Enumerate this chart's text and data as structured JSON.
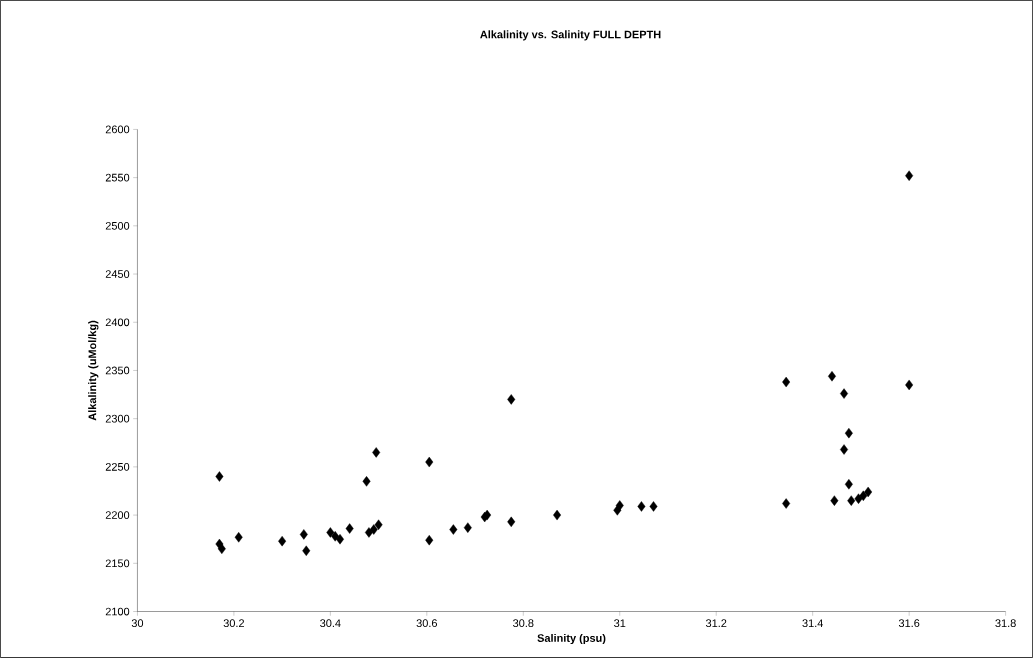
{
  "chart_data": {
    "type": "scatter",
    "title": "Alkalinity vs. Salinity FULL DEPTH",
    "xlabel": "Salinity (psu)",
    "ylabel": "Alkalinity (uMol/kg)",
    "x": [
      30.17,
      30.17,
      30.175,
      30.21,
      30.3,
      30.345,
      30.35,
      30.4,
      30.41,
      30.42,
      30.44,
      30.475,
      30.48,
      30.49,
      30.495,
      30.5,
      30.605,
      30.605,
      30.655,
      30.685,
      30.72,
      30.725,
      30.775,
      30.775,
      30.87,
      30.995,
      31.0,
      31.045,
      31.07,
      31.345,
      31.345,
      31.44,
      31.445,
      31.465,
      31.465,
      31.475,
      31.475,
      31.48,
      31.495,
      31.505,
      31.515,
      31.6,
      31.6
    ],
    "values": [
      2240,
      2170,
      2165,
      2177,
      2173,
      2180,
      2163,
      2182,
      2178,
      2175,
      2186,
      2235,
      2182,
      2185,
      2265,
      2190,
      2255,
      2174,
      2185,
      2187,
      2198,
      2200,
      2320,
      2193,
      2200,
      2205,
      2210,
      2209,
      2209,
      2338,
      2212,
      2344,
      2215,
      2326,
      2268,
      2285,
      2232,
      2215,
      2217,
      2220,
      2224,
      2552,
      2335
    ],
    "color": "#000000",
    "marker": "diamond",
    "xlim": [
      30,
      31.8
    ],
    "xticks": [
      30,
      30.2,
      30.4,
      30.6,
      30.8,
      31,
      31.2,
      31.4,
      31.6,
      31.8
    ],
    "ylim": [
      2100,
      2600
    ],
    "yticks": [
      2100,
      2150,
      2200,
      2250,
      2300,
      2350,
      2400,
      2450,
      2500,
      2550,
      2600
    ],
    "grid": false
  }
}
